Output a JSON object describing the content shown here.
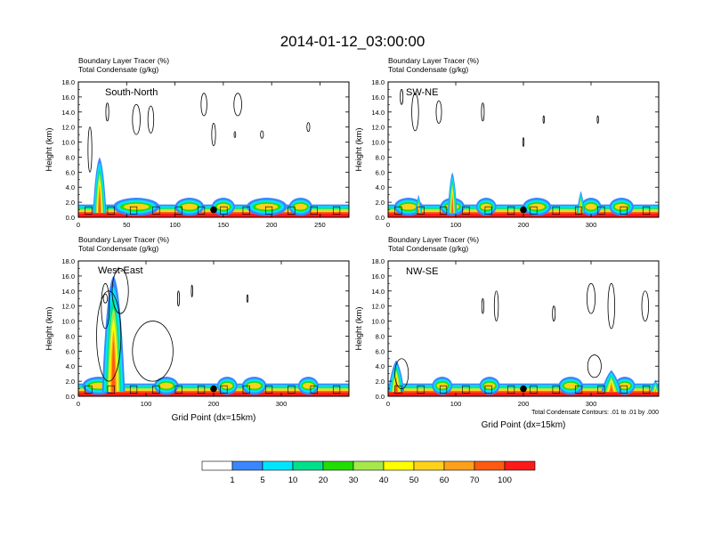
{
  "title": "2014-01-12_03:00:00",
  "colors": {
    "levels": [
      "#ffffff",
      "#3a86ff",
      "#00e5ff",
      "#00e08a",
      "#22dd00",
      "#a6e84a",
      "#ffff00",
      "#ffd21a",
      "#ffa01a",
      "#ff5a10",
      "#ff1a1a"
    ]
  },
  "chart_data": [
    {
      "type": "heatmap",
      "panel_label": "South-North",
      "subtitle_1": "Boundary Layer Tracer   (%)",
      "subtitle_2": "Total Condensate   (g/kg)",
      "xlabel": "",
      "ylabel": "Height (km)",
      "xlim": [
        0,
        280
      ],
      "ylim": [
        0,
        18
      ],
      "xticks": [
        0,
        50,
        100,
        150,
        200,
        250
      ],
      "xtick_labels": [
        "0",
        "50",
        "100",
        "150",
        "200",
        "250"
      ],
      "yticks": [
        0,
        2,
        4,
        6,
        8,
        10,
        12,
        14,
        16,
        18
      ],
      "ytick_labels": [
        "0.0",
        "2.0",
        "4.0",
        "6.0",
        "8.0",
        "10.0",
        "12.0",
        "14.0",
        "16.0",
        "18.0"
      ],
      "marker_x": 140,
      "marker_y": 1.0,
      "footnote": ""
    },
    {
      "type": "heatmap",
      "panel_label": "SW-NE",
      "subtitle_1": "Boundary Layer Tracer   (%)",
      "subtitle_2": "Total Condensate   (g/kg)",
      "xlabel": "",
      "ylabel": "Height (km)",
      "xlim": [
        0,
        400
      ],
      "ylim": [
        0,
        18
      ],
      "xticks": [
        0,
        100,
        200,
        300
      ],
      "xtick_labels": [
        "0",
        "100",
        "200",
        "300"
      ],
      "yticks": [
        0,
        2,
        4,
        6,
        8,
        10,
        12,
        14,
        16,
        18
      ],
      "ytick_labels": [
        "0.0",
        "2.0",
        "4.0",
        "6.0",
        "8.0",
        "10.0",
        "12.0",
        "14.0",
        "16.0",
        "18.0"
      ],
      "marker_x": 200,
      "marker_y": 1.0,
      "footnote": ""
    },
    {
      "type": "heatmap",
      "panel_label": "West-East",
      "subtitle_1": "Boundary Layer Tracer   (%)",
      "subtitle_2": "Total Condensate   (g/kg)",
      "xlabel": "Grid Point (dx=15km)",
      "ylabel": "Height (km)",
      "xlim": [
        0,
        400
      ],
      "ylim": [
        0,
        18
      ],
      "xticks": [
        0,
        100,
        200,
        300
      ],
      "xtick_labels": [
        "0",
        "100",
        "200",
        "300"
      ],
      "yticks": [
        0,
        2,
        4,
        6,
        8,
        10,
        12,
        14,
        16,
        18
      ],
      "ytick_labels": [
        "0.0",
        "2.0",
        "4.0",
        "6.0",
        "8.0",
        "10.0",
        "12.0",
        "14.0",
        "16.0",
        "18.0"
      ],
      "marker_x": 200,
      "marker_y": 1.0,
      "footnote": ""
    },
    {
      "type": "heatmap",
      "panel_label": "NW-SE",
      "subtitle_1": "Boundary Layer Tracer   (%)",
      "subtitle_2": "Total Condensate   (g/kg)",
      "xlabel": "Grid Point (dx=15km)",
      "ylabel": "Height (km)",
      "xlim": [
        0,
        400
      ],
      "ylim": [
        0,
        18
      ],
      "xticks": [
        0,
        100,
        200,
        300
      ],
      "xtick_labels": [
        "0",
        "100",
        "200",
        "300"
      ],
      "yticks": [
        0,
        2,
        4,
        6,
        8,
        10,
        12,
        14,
        16,
        18
      ],
      "ytick_labels": [
        "0.0",
        "2.0",
        "4.0",
        "6.0",
        "8.0",
        "10.0",
        "12.0",
        "14.0",
        "16.0",
        "18.0"
      ],
      "marker_x": 200,
      "marker_y": 1.0,
      "footnote": "Total Condensate Contours: .01 to .01 by .000"
    }
  ],
  "colorbar": {
    "labels": [
      "1",
      "5",
      "10",
      "20",
      "30",
      "40",
      "50",
      "60",
      "70",
      "100"
    ]
  }
}
